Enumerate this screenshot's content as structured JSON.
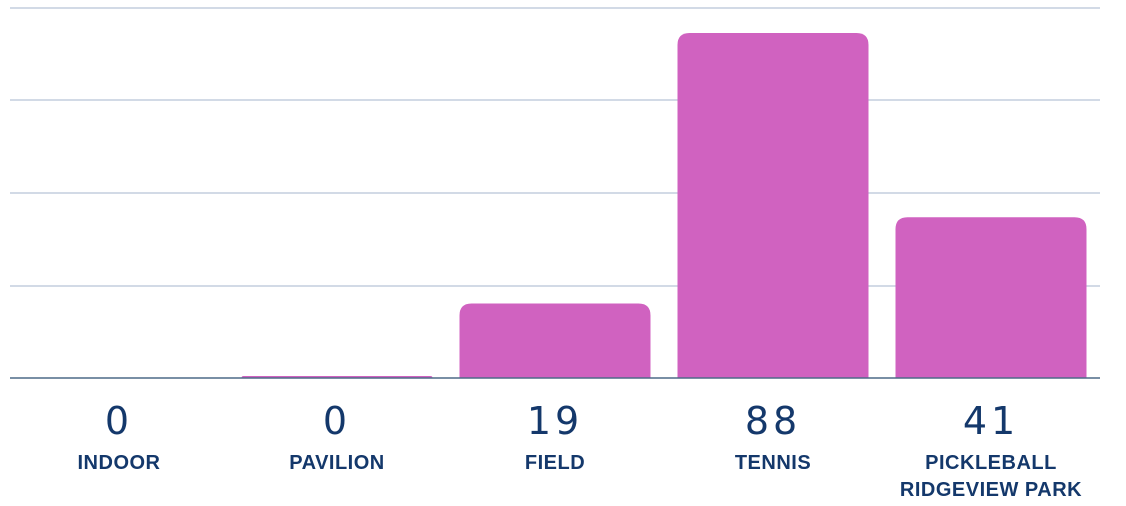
{
  "chart_data": {
    "type": "bar",
    "categories": [
      "INDOOR",
      "PAVILION",
      "FIELD",
      "TENNIS",
      "PICKLEBALL RIDGEVIEW PARK"
    ],
    "category_lines": [
      [
        "INDOOR"
      ],
      [
        "PAVILION"
      ],
      [
        "FIELD"
      ],
      [
        "TENNIS"
      ],
      [
        "PICKLEBALL",
        "RIDGEVIEW PARK"
      ]
    ],
    "values": [
      0,
      0.5,
      19,
      88,
      41
    ],
    "value_labels": [
      "0",
      "0",
      "19",
      "88",
      "41"
    ],
    "ylim": [
      0,
      88
    ],
    "grid": true,
    "bar_color": "#d062c0",
    "label_color": "#14386b",
    "grid_color": "#c3cedd",
    "baseline_color": "#4d6a87",
    "title": "",
    "xlabel": "",
    "ylabel": ""
  }
}
